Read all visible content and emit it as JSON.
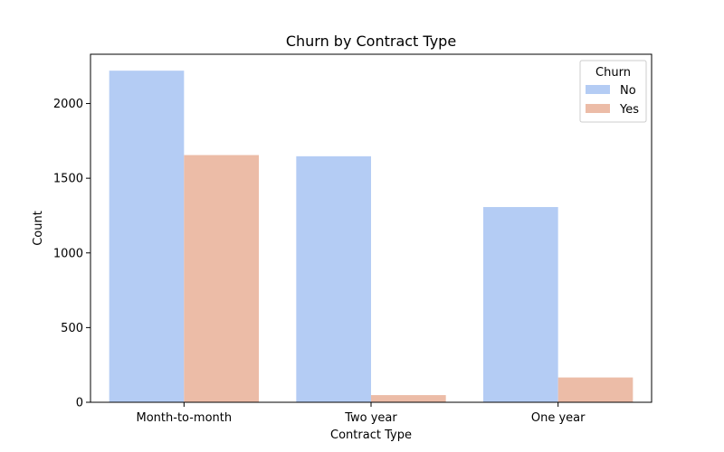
{
  "chart_data": {
    "type": "bar",
    "title": "Churn by Contract Type",
    "xlabel": "Contract Type",
    "ylabel": "Count",
    "categories": [
      "Month-to-month",
      "Two year",
      "One year"
    ],
    "series": [
      {
        "name": "No",
        "values": [
          2220,
          1647,
          1307
        ],
        "color": "#b4ccf4"
      },
      {
        "name": "Yes",
        "values": [
          1655,
          48,
          166
        ],
        "color": "#ecbca7"
      }
    ],
    "ylim": [
      0,
      2330
    ],
    "yticks": [
      0,
      500,
      1000,
      1500,
      2000
    ],
    "grid": false,
    "legend": {
      "title": "Churn",
      "placement": "top-right"
    }
  }
}
